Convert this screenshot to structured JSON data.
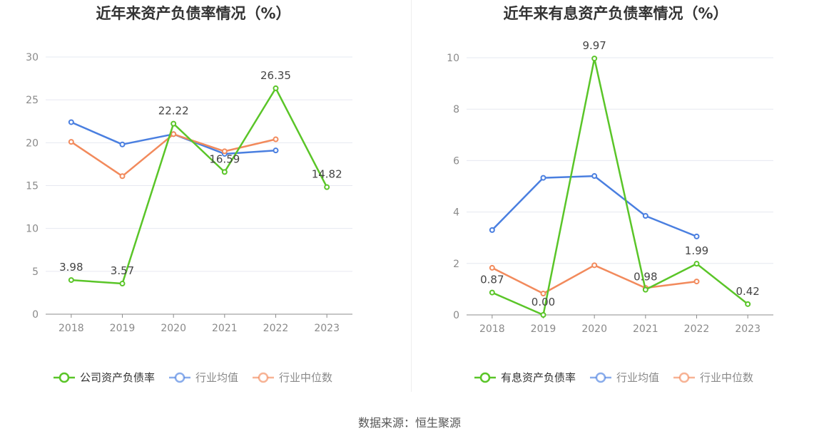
{
  "chart_data": [
    {
      "type": "line",
      "title": "近年来资产负债率情况（%）",
      "x": [
        "2018",
        "2019",
        "2020",
        "2021",
        "2022",
        "2023"
      ],
      "ylim": [
        0,
        30
      ],
      "yticks": [
        0,
        5,
        10,
        15,
        20,
        25,
        30
      ],
      "grid": true,
      "legend_position": "bottom",
      "series": [
        {
          "name": "公司资产负债率",
          "color": "#5ac528",
          "labeled": true,
          "values": [
            3.98,
            3.57,
            22.22,
            16.59,
            26.35,
            14.82
          ]
        },
        {
          "name": "行业均值",
          "color": "#4a7fe0",
          "labeled": false,
          "values": [
            22.4,
            19.8,
            21.0,
            18.7,
            19.1,
            null
          ]
        },
        {
          "name": "行业中位数",
          "color": "#f28a5c",
          "labeled": false,
          "values": [
            20.1,
            16.1,
            21.0,
            19.0,
            20.4,
            null
          ]
        }
      ],
      "data_labels": [
        "3.98",
        "3.57",
        "22.22",
        "16.59",
        "26.35",
        "14.82"
      ]
    },
    {
      "type": "line",
      "title": "近年来有息资产负债率情况（%）",
      "x": [
        "2018",
        "2019",
        "2020",
        "2021",
        "2022",
        "2023"
      ],
      "ylim": [
        0,
        10
      ],
      "yticks": [
        0,
        2,
        4,
        6,
        8,
        10
      ],
      "grid": true,
      "legend_position": "bottom",
      "series": [
        {
          "name": "有息资产负债率",
          "color": "#5ac528",
          "labeled": true,
          "values": [
            0.87,
            0.0,
            9.97,
            0.98,
            1.99,
            0.42
          ]
        },
        {
          "name": "行业均值",
          "color": "#4a7fe0",
          "labeled": false,
          "values": [
            3.3,
            5.33,
            5.4,
            3.85,
            3.05,
            null
          ]
        },
        {
          "name": "行业中位数",
          "color": "#f28a5c",
          "labeled": false,
          "values": [
            1.83,
            0.83,
            1.93,
            1.05,
            1.3,
            null
          ]
        }
      ],
      "data_labels": [
        "0.87",
        "0.00",
        "9.97",
        "0.98",
        "1.99",
        "0.42"
      ]
    }
  ],
  "source_text": "数据来源：恒生聚源"
}
